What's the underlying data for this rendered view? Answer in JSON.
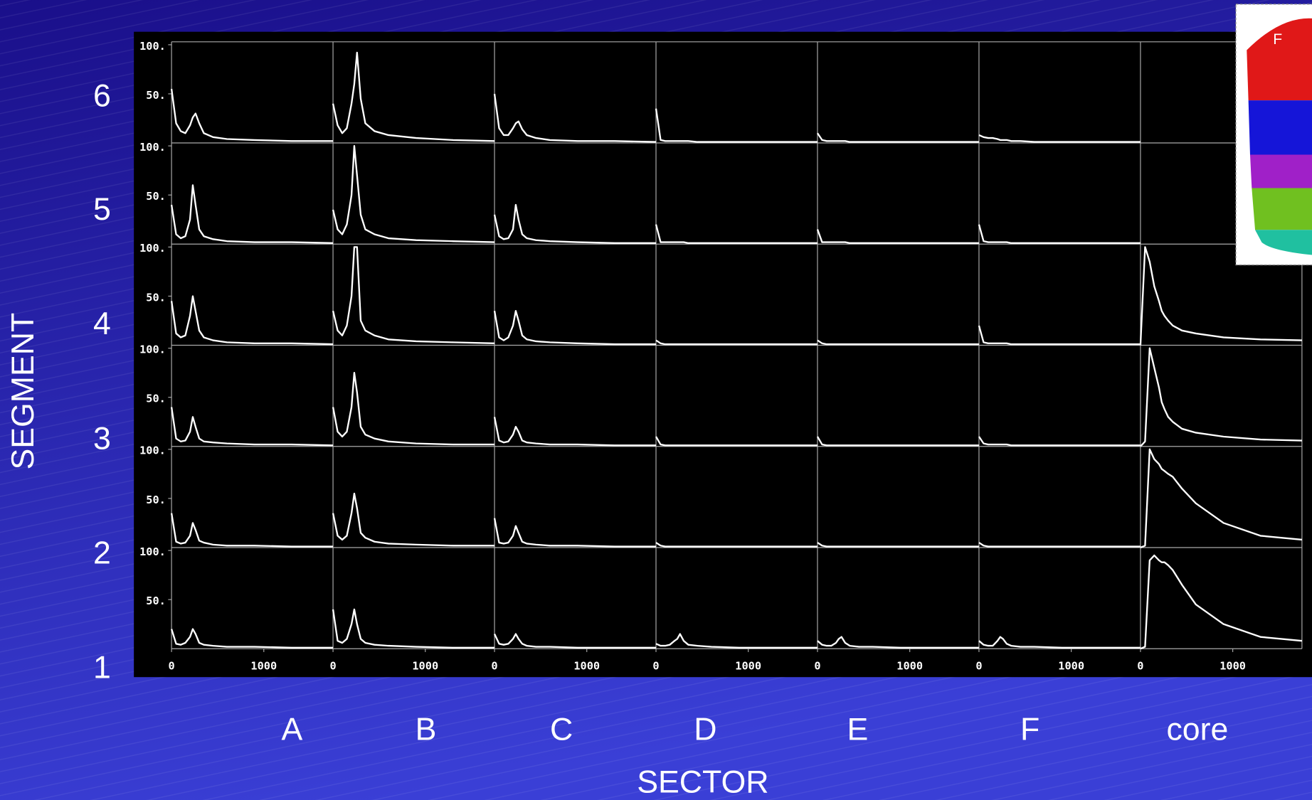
{
  "chart_data": {
    "type": "line",
    "x_label": "SECTOR",
    "y_label": "SEGMENT",
    "categories": [
      "A",
      "B",
      "C",
      "D",
      "E",
      "F",
      "core"
    ],
    "rows": [
      "6",
      "5",
      "4",
      "3",
      "2",
      "1"
    ],
    "x": [
      0,
      50,
      100,
      150,
      200,
      230,
      260,
      300,
      350,
      450,
      600,
      900,
      1300,
      1750
    ],
    "xlim": [
      0,
      1750
    ],
    "xticks": [
      0,
      1000
    ],
    "ylim": [
      0,
      103
    ],
    "yticks": [
      {
        "value": 50,
        "label": "50."
      },
      {
        "value": 100,
        "label": "100."
      }
    ],
    "color": "#ffffff",
    "panels": [
      [
        [
          55,
          20,
          12,
          10,
          18,
          26,
          30,
          20,
          10,
          6,
          4,
          3,
          2,
          2
        ],
        [
          40,
          18,
          10,
          15,
          40,
          60,
          92,
          45,
          20,
          12,
          8,
          5,
          3,
          2
        ],
        [
          50,
          15,
          8,
          8,
          15,
          20,
          22,
          14,
          8,
          5,
          3,
          2,
          2,
          1
        ],
        [
          35,
          3,
          2,
          2,
          2,
          2,
          2,
          2,
          2,
          1,
          1,
          1,
          1,
          1
        ],
        [
          10,
          3,
          2,
          2,
          2,
          2,
          2,
          2,
          1,
          1,
          1,
          1,
          1,
          1
        ],
        [
          8,
          6,
          5,
          5,
          4,
          3,
          3,
          3,
          2,
          2,
          1,
          1,
          1,
          1
        ],
        null
      ],
      [
        [
          40,
          10,
          6,
          8,
          25,
          60,
          40,
          15,
          8,
          5,
          3,
          2,
          2,
          1
        ],
        [
          35,
          15,
          10,
          20,
          50,
          100,
          70,
          30,
          15,
          10,
          6,
          4,
          3,
          2
        ],
        [
          30,
          8,
          5,
          6,
          15,
          40,
          25,
          10,
          6,
          4,
          3,
          2,
          1,
          1
        ],
        [
          20,
          2,
          2,
          2,
          2,
          2,
          2,
          2,
          1,
          1,
          1,
          1,
          1,
          1
        ],
        [
          15,
          2,
          2,
          2,
          2,
          2,
          2,
          2,
          1,
          1,
          1,
          1,
          1,
          1
        ],
        [
          20,
          3,
          2,
          2,
          2,
          2,
          2,
          2,
          1,
          1,
          1,
          1,
          1,
          1
        ],
        null
      ],
      [
        [
          45,
          12,
          8,
          10,
          30,
          50,
          35,
          15,
          8,
          5,
          3,
          2,
          2,
          1
        ],
        [
          35,
          15,
          10,
          20,
          50,
          100,
          100,
          25,
          15,
          10,
          6,
          4,
          3,
          2
        ],
        [
          35,
          8,
          5,
          8,
          20,
          35,
          25,
          10,
          6,
          4,
          3,
          2,
          1,
          1
        ],
        [
          5,
          2,
          1,
          1,
          1,
          1,
          1,
          1,
          1,
          1,
          1,
          1,
          1,
          1
        ],
        [
          5,
          2,
          1,
          1,
          1,
          1,
          1,
          1,
          1,
          1,
          1,
          1,
          1,
          1
        ],
        [
          20,
          3,
          2,
          2,
          2,
          2,
          2,
          2,
          1,
          1,
          1,
          1,
          1,
          1
        ],
        [
          0,
          100,
          85,
          60,
          45,
          35,
          30,
          25,
          20,
          15,
          12,
          8,
          6,
          5
        ]
      ],
      [
        [
          40,
          8,
          5,
          6,
          15,
          30,
          20,
          8,
          5,
          4,
          3,
          2,
          2,
          1
        ],
        [
          40,
          15,
          10,
          15,
          40,
          75,
          55,
          20,
          12,
          8,
          5,
          3,
          2,
          2
        ],
        [
          30,
          6,
          4,
          5,
          12,
          20,
          15,
          6,
          4,
          3,
          2,
          2,
          1,
          1
        ],
        [
          10,
          2,
          1,
          1,
          1,
          1,
          1,
          1,
          1,
          1,
          1,
          1,
          1,
          1
        ],
        [
          10,
          2,
          1,
          1,
          1,
          1,
          1,
          1,
          1,
          1,
          1,
          1,
          1,
          1
        ],
        [
          10,
          3,
          2,
          2,
          2,
          2,
          2,
          2,
          1,
          1,
          1,
          1,
          1,
          1
        ],
        [
          0,
          5,
          100,
          80,
          60,
          45,
          38,
          30,
          25,
          18,
          14,
          10,
          7,
          6
        ]
      ],
      [
        [
          35,
          6,
          4,
          5,
          12,
          25,
          18,
          7,
          5,
          3,
          2,
          2,
          1,
          1
        ],
        [
          35,
          12,
          8,
          12,
          35,
          55,
          40,
          15,
          10,
          6,
          4,
          3,
          2,
          2
        ],
        [
          30,
          5,
          4,
          5,
          12,
          22,
          15,
          6,
          4,
          3,
          2,
          2,
          1,
          1
        ],
        [
          5,
          2,
          1,
          1,
          1,
          1,
          1,
          1,
          1,
          1,
          1,
          1,
          1,
          1
        ],
        [
          5,
          2,
          1,
          1,
          1,
          1,
          1,
          1,
          1,
          1,
          1,
          1,
          1,
          1
        ],
        [
          5,
          2,
          1,
          1,
          1,
          1,
          1,
          1,
          1,
          1,
          1,
          1,
          1,
          1
        ],
        [
          0,
          2,
          100,
          90,
          85,
          80,
          78,
          75,
          72,
          60,
          45,
          25,
          12,
          8
        ]
      ],
      [
        [
          20,
          5,
          4,
          6,
          12,
          20,
          15,
          6,
          4,
          3,
          2,
          2,
          1,
          1
        ],
        [
          40,
          8,
          6,
          10,
          25,
          40,
          25,
          10,
          6,
          4,
          3,
          2,
          1,
          1
        ],
        [
          15,
          5,
          4,
          5,
          10,
          15,
          10,
          5,
          3,
          2,
          2,
          1,
          1,
          1
        ],
        [
          5,
          3,
          3,
          4,
          8,
          10,
          15,
          8,
          4,
          3,
          2,
          1,
          1,
          1
        ],
        [
          8,
          4,
          3,
          3,
          6,
          10,
          12,
          6,
          3,
          2,
          2,
          1,
          1,
          1
        ],
        [
          8,
          4,
          3,
          3,
          8,
          12,
          10,
          5,
          3,
          2,
          2,
          1,
          1,
          1
        ],
        [
          0,
          2,
          90,
          95,
          90,
          88,
          88,
          85,
          80,
          65,
          45,
          25,
          12,
          8
        ]
      ]
    ]
  },
  "inset": {
    "label": "F"
  }
}
